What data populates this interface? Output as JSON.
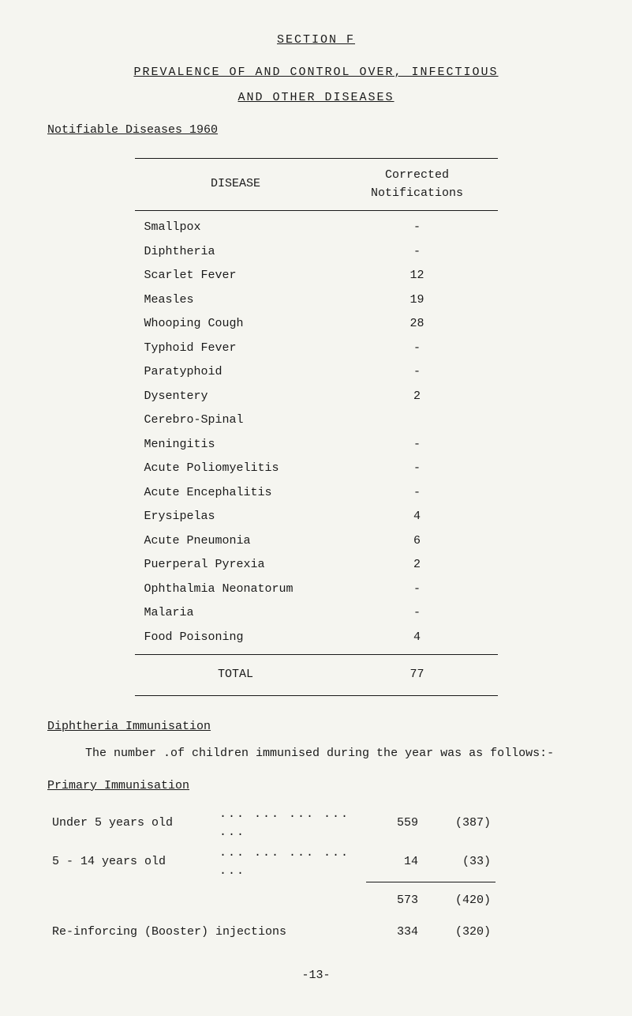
{
  "section_title": "SECTION  F",
  "subtitle": "PREVALENCE  OF  AND  CONTROL  OVER,  INFECTIOUS",
  "subtitle2": "AND  OTHER  DISEASES",
  "heading": "Notifiable Diseases 1960",
  "table": {
    "headers": {
      "disease": "DISEASE",
      "notifications": "Corrected\nNotifications"
    },
    "rows": [
      {
        "disease": "Smallpox",
        "value": "-"
      },
      {
        "disease": "Diphtheria",
        "value": "-"
      },
      {
        "disease": "Scarlet Fever",
        "value": "12"
      },
      {
        "disease": "Measles",
        "value": "19"
      },
      {
        "disease": "Whooping Cough",
        "value": "28"
      },
      {
        "disease": "Typhoid Fever",
        "value": "-"
      },
      {
        "disease": "Paratyphoid",
        "value": "-"
      },
      {
        "disease": "Dysentery",
        "value": "2"
      },
      {
        "disease": "Cerebro-Spinal",
        "value": ""
      },
      {
        "disease": "Meningitis",
        "value": "-",
        "indent": true
      },
      {
        "disease": "Acute Poliomyelitis",
        "value": "-"
      },
      {
        "disease": "Acute Encephalitis",
        "value": "-"
      },
      {
        "disease": "Erysipelas",
        "value": "4"
      },
      {
        "disease": "Acute Pneumonia",
        "value": "6"
      },
      {
        "disease": "Puerperal Pyrexia",
        "value": "2"
      },
      {
        "disease": "Ophthalmia Neonatorum",
        "value": "-"
      },
      {
        "disease": "Malaria",
        "value": "-"
      },
      {
        "disease": "Food Poisoning",
        "value": "4"
      }
    ],
    "total_label": "TOTAL",
    "total_value": "77"
  },
  "diphtheria_heading": "Diphtheria Immunisation",
  "paragraph": "The number .of children immunised during the year was as follows:-",
  "primary_heading": "Primary Immunisation",
  "immunisation": {
    "rows": [
      {
        "label": "Under 5 years old",
        "dots": "...  ...  ...  ...  ...",
        "num": "559",
        "paren": "(387)"
      },
      {
        "label": "5  - 14 years old",
        "dots": "...  ...  ...  ...  ...",
        "num": "14",
        "paren": "(33)"
      }
    ],
    "subtotal": {
      "num": "573",
      "paren": "(420)"
    },
    "reinforcing": {
      "label": "Re-inforcing (Booster) injections",
      "num": "334",
      "paren": "(320)"
    }
  },
  "page_number": "-13-"
}
